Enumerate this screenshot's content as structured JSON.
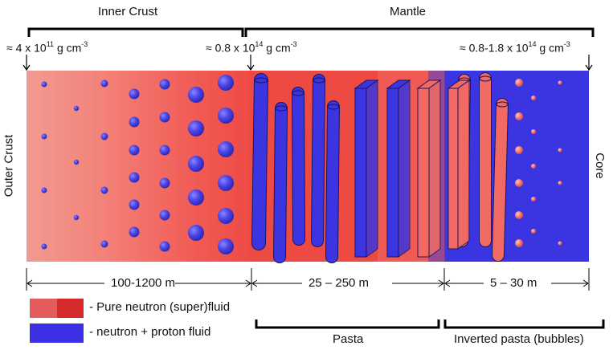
{
  "regions": {
    "inner_crust": "Inner Crust",
    "mantle": "Mantle",
    "outer_crust": "Outer Crust",
    "core": "Core"
  },
  "densities": {
    "left": {
      "prefix": "≈ 4 x 10",
      "exp": "11",
      "unit": " g cm",
      "unit_exp": "-3"
    },
    "middle": {
      "prefix": "≈ 0.8 x 10",
      "exp": "14",
      "unit": " g cm",
      "unit_exp": "-3"
    },
    "right": {
      "prefix": "≈ 0.8-1.8 x 10",
      "exp": "14",
      "unit": " g cm",
      "unit_exp": "-3"
    }
  },
  "dimensions": {
    "inner": "100-1200 m",
    "pasta": "25 – 250 m",
    "bubbles": "5 – 30 m"
  },
  "phases": {
    "pasta": "Pasta",
    "inverted": "Inverted pasta (bubbles)"
  },
  "legend": {
    "neutron": "- Pure neutron (super)fluid",
    "np": "- neutron + proton fluid"
  },
  "colors": {
    "neutron_light": "#f08a82",
    "neutron": "#ee4a44",
    "neutron_dark": "#dc2a2a",
    "proton_blue": "#3a35e0",
    "nucleus": "#4a44e6",
    "bubble": "#f06d6a"
  }
}
